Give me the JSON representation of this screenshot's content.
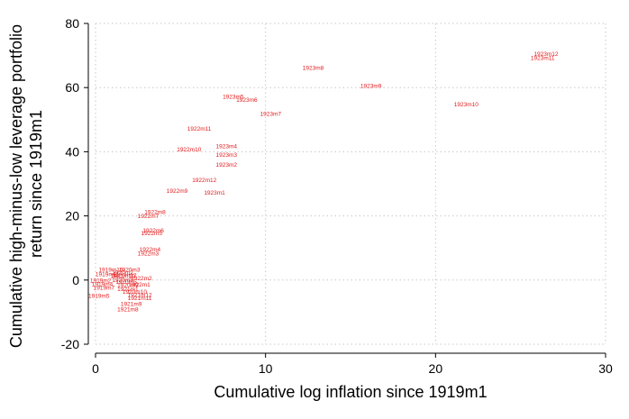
{
  "chart_data": {
    "type": "scatter",
    "marker": "label",
    "color": "#e41a1c",
    "xlabel": "Cumulative log inflation since 1919m1",
    "ylabel_lines": [
      "Cumulative high-minus-low leverage portfolio",
      "return since 1919m1"
    ],
    "xlim": [
      0,
      30
    ],
    "ylim": [
      -20,
      80
    ],
    "xticks": [
      0,
      10,
      20,
      30
    ],
    "yticks": [
      -20,
      0,
      20,
      40,
      60,
      80
    ],
    "grid": true,
    "points": [
      {
        "label": "1923m12",
        "x": 26.5,
        "y": 70.5
      },
      {
        "label": "1923m11",
        "x": 26.3,
        "y": 69.2
      },
      {
        "label": "1923m8",
        "x": 12.8,
        "y": 66.2
      },
      {
        "label": "1923m9",
        "x": 16.2,
        "y": 60.5
      },
      {
        "label": "1923m5",
        "x": 8.1,
        "y": 57.2
      },
      {
        "label": "1923m6",
        "x": 8.9,
        "y": 56.2
      },
      {
        "label": "1923m10",
        "x": 21.8,
        "y": 54.8
      },
      {
        "label": "1923m7",
        "x": 10.3,
        "y": 51.8
      },
      {
        "label": "1922m11",
        "x": 6.1,
        "y": 47.2
      },
      {
        "label": "1923m4",
        "x": 7.7,
        "y": 41.7
      },
      {
        "label": "1922m10",
        "x": 5.5,
        "y": 40.8
      },
      {
        "label": "1923m3",
        "x": 7.7,
        "y": 39.0
      },
      {
        "label": "1923m2",
        "x": 7.7,
        "y": 36.0
      },
      {
        "label": "1922m12",
        "x": 6.4,
        "y": 31.2
      },
      {
        "label": "1922m9",
        "x": 4.8,
        "y": 27.8
      },
      {
        "label": "1923m1",
        "x": 7.0,
        "y": 27.3
      },
      {
        "label": "1922m8",
        "x": 3.5,
        "y": 21.2
      },
      {
        "label": "1922m7",
        "x": 3.1,
        "y": 20.0
      },
      {
        "label": "1922m6",
        "x": 3.4,
        "y": 15.5
      },
      {
        "label": "1922m5",
        "x": 3.3,
        "y": 14.6
      },
      {
        "label": "1922m4",
        "x": 3.2,
        "y": 9.5
      },
      {
        "label": "1922m3",
        "x": 3.1,
        "y": 8.3
      },
      {
        "label": "1920m3",
        "x": 2.0,
        "y": 3.2
      },
      {
        "label": "1919m10",
        "x": 0.9,
        "y": 3.2
      },
      {
        "label": "1920m2",
        "x": 1.6,
        "y": 2.4
      },
      {
        "label": "1919m11",
        "x": 0.7,
        "y": 1.8
      },
      {
        "label": "1920m12",
        "x": 1.7,
        "y": 1.6
      },
      {
        "label": "1921m10",
        "x": 1.6,
        "y": 1.2
      },
      {
        "label": "1922m2",
        "x": 2.7,
        "y": 0.5
      },
      {
        "label": "1920m8",
        "x": 1.6,
        "y": 0.0
      },
      {
        "label": "1919m2",
        "x": 0.3,
        "y": -0.2
      },
      {
        "label": "1920m5",
        "x": 1.8,
        "y": -0.5
      },
      {
        "label": "1922m1",
        "x": 2.6,
        "y": -1.4
      },
      {
        "label": "1919m4",
        "x": 0.4,
        "y": -1.2
      },
      {
        "label": "1920m9",
        "x": 1.9,
        "y": -1.6
      },
      {
        "label": "1919m7",
        "x": 0.5,
        "y": -2.4
      },
      {
        "label": "1921m1",
        "x": 1.9,
        "y": -2.8
      },
      {
        "label": "1920m10",
        "x": 2.3,
        "y": -3.6
      },
      {
        "label": "1921m12",
        "x": 2.6,
        "y": -4.6
      },
      {
        "label": "1919m5",
        "x": 0.2,
        "y": -4.9
      },
      {
        "label": "1921m11",
        "x": 2.6,
        "y": -5.6
      },
      {
        "label": "1921m9",
        "x": 2.1,
        "y": -7.5
      },
      {
        "label": "1921m8",
        "x": 1.9,
        "y": -9.1
      }
    ]
  }
}
